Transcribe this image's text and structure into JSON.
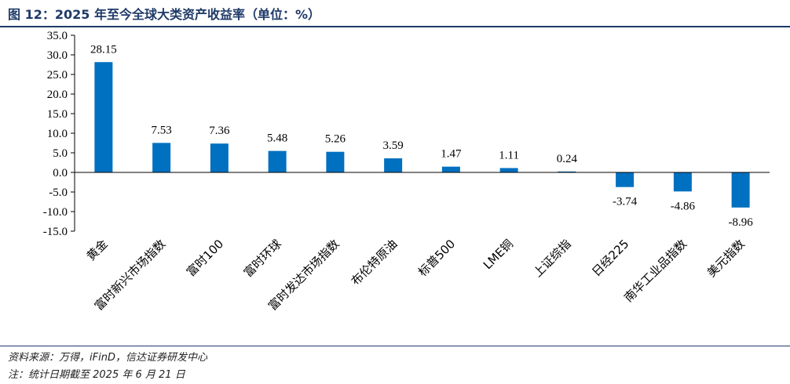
{
  "header": {
    "title": "图 12：2025 年至今全球大类资产收益率（单位：%）"
  },
  "footer": {
    "source": "资料来源：万得，iFinD，信达证券研发中心",
    "date_note": "注：统计日期截至 2025 年 6 月 21 日"
  },
  "colors": {
    "bar": "#0070c0",
    "accent": "#1f3a68"
  },
  "chart_data": {
    "type": "bar",
    "title": "图 12：2025 年至今全球大类资产收益率（单位：%）",
    "categories": [
      "黄金",
      "富时新兴市场指数",
      "富时100",
      "富时环球",
      "富时发达市场指数",
      "布伦特原油",
      "标普500",
      "LME铜",
      "上证综指",
      "日经225",
      "南华工业品指数",
      "美元指数"
    ],
    "values": [
      28.15,
      7.53,
      7.36,
      5.48,
      5.26,
      3.59,
      1.47,
      1.11,
      0.24,
      -3.74,
      -4.86,
      -8.96
    ],
    "value_labels": [
      "28.15",
      "7.53",
      "7.36",
      "5.48",
      "5.26",
      "3.59",
      "1.47",
      "1.11",
      "0.24",
      "-3.74",
      "-4.86",
      "-8.96"
    ],
    "xlabel": "",
    "ylabel": "",
    "ylim": [
      -15,
      35
    ],
    "yticks": [
      35,
      30,
      25,
      20,
      15,
      10,
      5,
      0,
      -5,
      -10,
      -15
    ],
    "ytick_labels": [
      "35.0",
      "30.0",
      "25.0",
      "20.0",
      "15.0",
      "10.0",
      "5.0",
      "0.0",
      "-5.0",
      "-10.0",
      "-15.0"
    ],
    "grid": false,
    "legend": "none"
  }
}
